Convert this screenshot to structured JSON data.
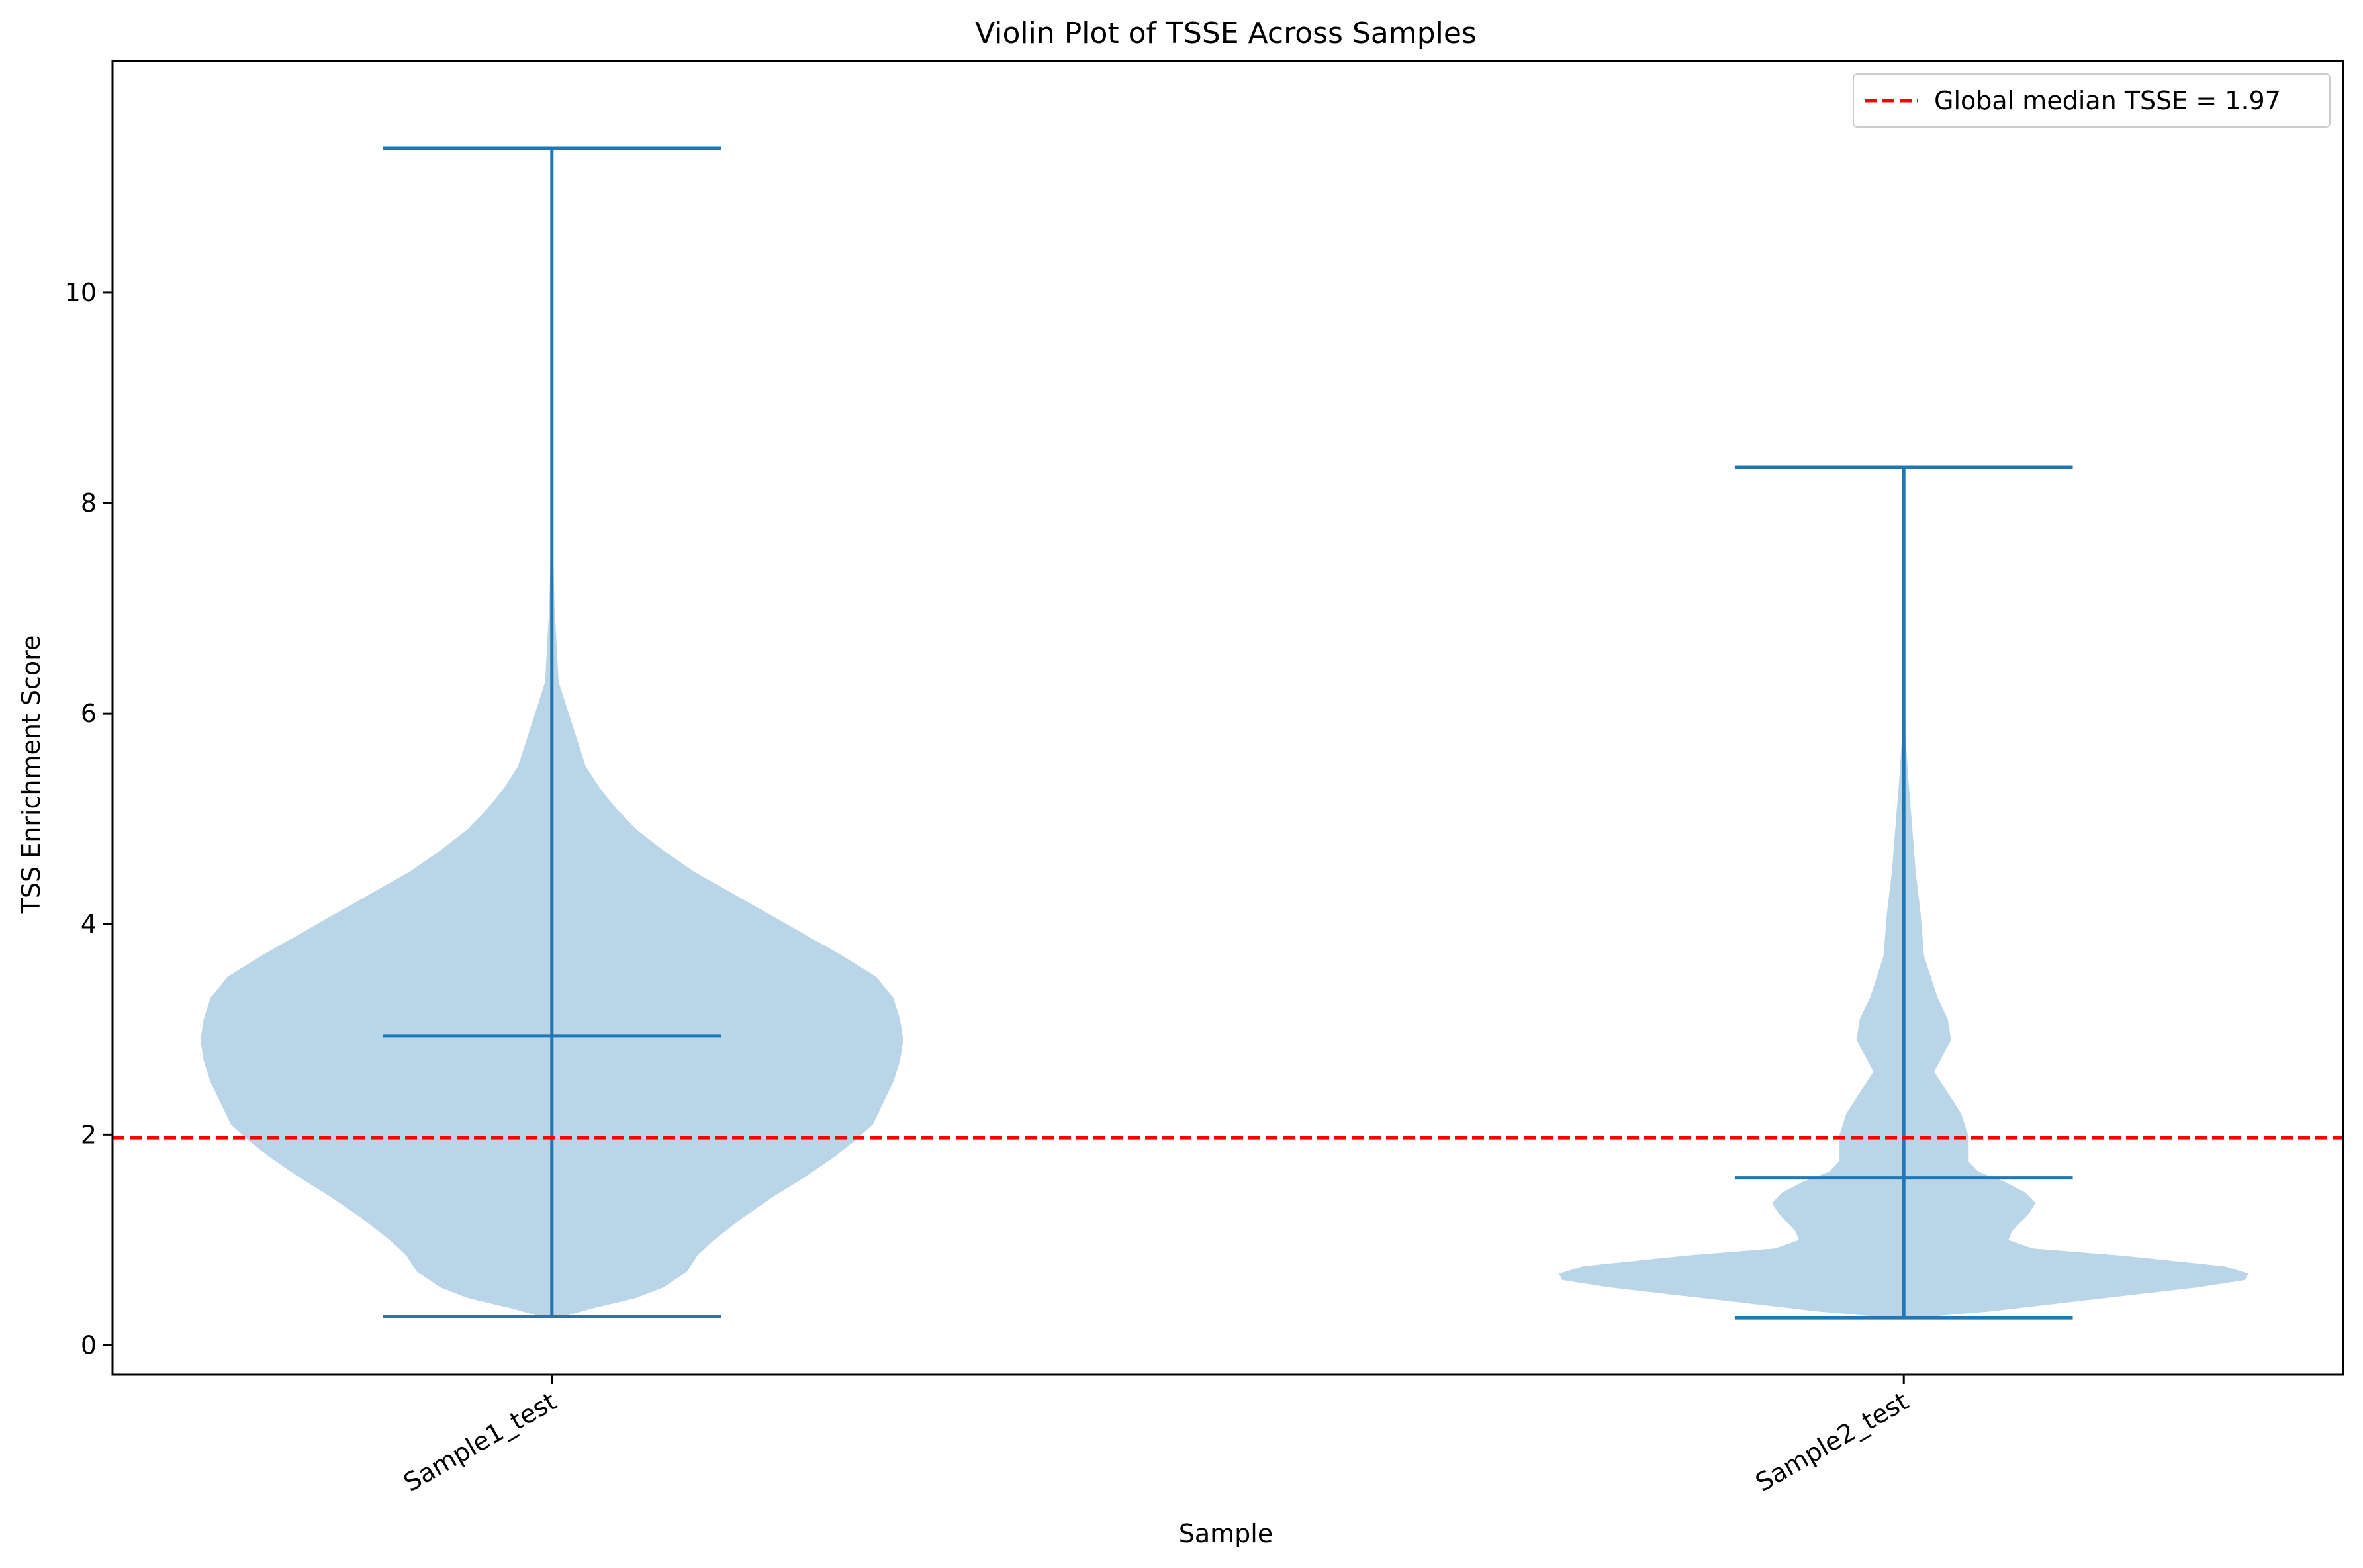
{
  "chart_data": {
    "type": "violin",
    "title": "Violin Plot of TSSE Across Samples",
    "xlabel": "Sample",
    "ylabel": "TSS Enrichment Score",
    "categories": [
      "Sample1_test",
      "Sample2_test"
    ],
    "ylim": [
      -0.28,
      12.2
    ],
    "yticks": [
      0,
      2,
      4,
      6,
      8,
      10
    ],
    "grid": false,
    "legend_position": "top-right",
    "colors": {
      "violin_fill": "#bad5e8",
      "violin_lines": "#1f77b4",
      "reference_line": "#ff0000"
    },
    "violins": [
      {
        "category": "Sample1_test",
        "min": 0.27,
        "median": 2.94,
        "max": 11.37,
        "profile": [
          [
            0.27,
            0.03
          ],
          [
            0.35,
            0.12
          ],
          [
            0.45,
            0.25
          ],
          [
            0.55,
            0.33
          ],
          [
            0.7,
            0.4
          ],
          [
            0.85,
            0.43
          ],
          [
            1.0,
            0.48
          ],
          [
            1.2,
            0.56
          ],
          [
            1.4,
            0.65
          ],
          [
            1.6,
            0.75
          ],
          [
            1.8,
            0.84
          ],
          [
            1.95,
            0.9
          ],
          [
            2.1,
            0.95
          ],
          [
            2.3,
            0.98
          ],
          [
            2.5,
            1.01
          ],
          [
            2.7,
            1.03
          ],
          [
            2.9,
            1.04
          ],
          [
            3.1,
            1.03
          ],
          [
            3.3,
            1.01
          ],
          [
            3.5,
            0.96
          ],
          [
            3.7,
            0.86
          ],
          [
            3.9,
            0.75
          ],
          [
            4.1,
            0.64
          ],
          [
            4.3,
            0.53
          ],
          [
            4.5,
            0.42
          ],
          [
            4.7,
            0.33
          ],
          [
            4.9,
            0.25
          ],
          [
            5.1,
            0.19
          ],
          [
            5.3,
            0.14
          ],
          [
            5.5,
            0.1
          ],
          [
            5.8,
            0.07
          ],
          [
            6.1,
            0.04
          ],
          [
            6.3,
            0.02
          ],
          [
            6.6,
            0.015
          ],
          [
            7.0,
            0.008
          ],
          [
            7.5,
            0.004
          ],
          [
            8.5,
            0.002
          ],
          [
            11.37,
            0.001
          ]
        ]
      },
      {
        "category": "Sample2_test",
        "min": 0.26,
        "median": 1.59,
        "max": 8.34,
        "profile": [
          [
            0.26,
            0.03
          ],
          [
            0.32,
            0.25
          ],
          [
            0.45,
            0.6
          ],
          [
            0.55,
            0.87
          ],
          [
            0.62,
            1.01
          ],
          [
            0.68,
            1.02
          ],
          [
            0.75,
            0.95
          ],
          [
            0.85,
            0.65
          ],
          [
            0.92,
            0.38
          ],
          [
            1.0,
            0.31
          ],
          [
            1.08,
            0.32
          ],
          [
            1.15,
            0.34
          ],
          [
            1.25,
            0.37
          ],
          [
            1.35,
            0.39
          ],
          [
            1.45,
            0.36
          ],
          [
            1.55,
            0.3
          ],
          [
            1.65,
            0.22
          ],
          [
            1.75,
            0.19
          ],
          [
            1.85,
            0.19
          ],
          [
            2.0,
            0.19
          ],
          [
            2.2,
            0.17
          ],
          [
            2.4,
            0.13
          ],
          [
            2.6,
            0.09
          ],
          [
            2.9,
            0.14
          ],
          [
            3.1,
            0.13
          ],
          [
            3.3,
            0.1
          ],
          [
            3.7,
            0.06
          ],
          [
            4.1,
            0.05
          ],
          [
            4.5,
            0.035
          ],
          [
            5.0,
            0.023
          ],
          [
            5.4,
            0.013
          ],
          [
            5.8,
            0.005
          ],
          [
            6.5,
            0.002
          ],
          [
            8.34,
            0.001
          ]
        ]
      }
    ],
    "reference_line": {
      "y": 1.97,
      "label": "Global median TSSE = 1.97"
    }
  }
}
